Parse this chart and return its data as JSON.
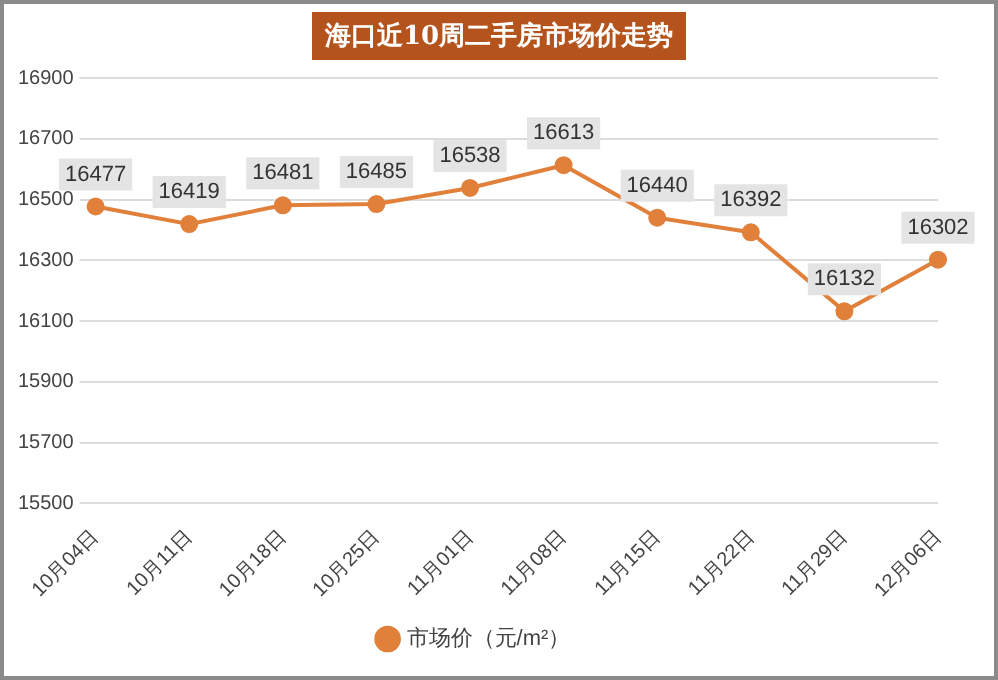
{
  "chart_data": {
    "type": "line",
    "title": "海口近10周二手房市场价走势",
    "categories": [
      "10月04日",
      "10月11日",
      "10月18日",
      "10月25日",
      "11月01日",
      "11月08日",
      "11月15日",
      "11月22日",
      "11月29日",
      "12月06日"
    ],
    "series": [
      {
        "name": "市场价（元/m²）",
        "color": "#e0803a",
        "values": [
          16477,
          16419,
          16481,
          16485,
          16538,
          16613,
          16440,
          16392,
          16132,
          16302
        ]
      }
    ],
    "ylim": [
      15500,
      16900
    ],
    "yticks": [
      15500,
      15700,
      15900,
      16100,
      16300,
      16500,
      16700,
      16900
    ],
    "grid": "y",
    "legend": "bottom",
    "marker": "circle",
    "line_style": "solid",
    "data_labels": true
  }
}
